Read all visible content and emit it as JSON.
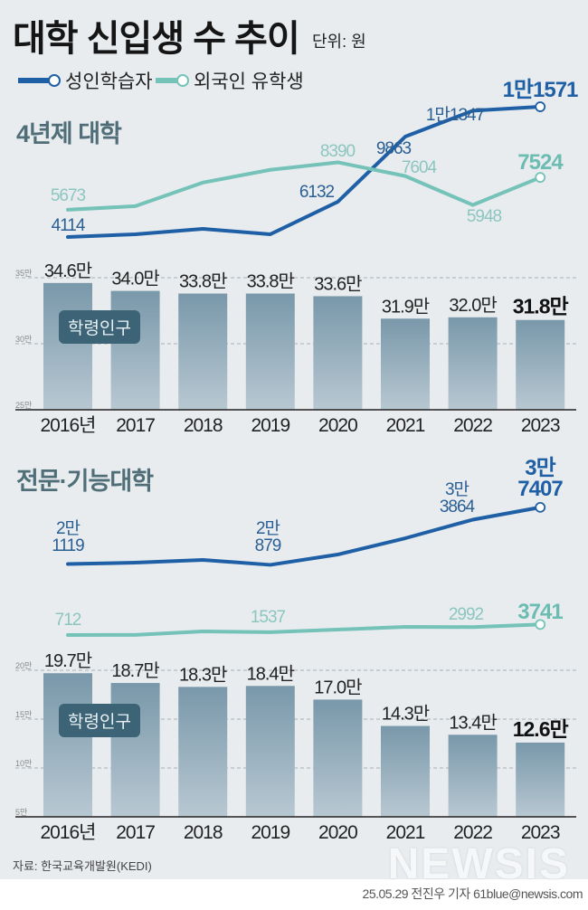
{
  "header": {
    "title": "대학 신입생 수 추이",
    "unit": "단위: 원"
  },
  "legend": [
    {
      "name": "성인학습자",
      "color": "#1f5fa5"
    },
    {
      "name": "외국인 유학생",
      "color": "#74c2b8"
    }
  ],
  "colors": {
    "background": "#e8ecef",
    "bar": "#7f9caf",
    "label_box": "#3d6476"
  },
  "footer": {
    "source": "자료: 한국교육개발원(KEDI)",
    "credit": "25.05.29 전진우 기자 61blue@newsis.com",
    "logo": "뉴시스"
  },
  "chart_data": [
    {
      "type": "line",
      "title": "4년제 대학",
      "x": [
        "2016",
        "2017",
        "2018",
        "2019",
        "2020",
        "2021",
        "2022",
        "2023"
      ],
      "series": [
        {
          "name": "성인학습자",
          "values": [
            4114,
            4270,
            4580,
            4270,
            6132,
            9863,
            11347,
            11571
          ],
          "labels": [
            "4114",
            "",
            "",
            "",
            "6132",
            "9863",
            "1만1347",
            "1만1571"
          ]
        },
        {
          "name": "외국인 유학생",
          "values": [
            5673,
            5880,
            7230,
            7960,
            8390,
            7604,
            5948,
            7524
          ],
          "labels": [
            "5673",
            "",
            "",
            "",
            "8390",
            "7604",
            "5948",
            "7524"
          ]
        }
      ]
    },
    {
      "type": "bar",
      "label": "학령인구",
      "categories": [
        "2016년",
        "2017",
        "2018",
        "2019",
        "2020",
        "2021",
        "2022",
        "2023"
      ],
      "values": [
        34.6,
        34.0,
        33.8,
        33.8,
        33.6,
        31.9,
        32.0,
        31.8
      ],
      "value_labels": [
        "34.6만",
        "34.0만",
        "33.8만",
        "33.8만",
        "33.6만",
        "31.9만",
        "32.0만",
        "31.8만"
      ],
      "unit": "만",
      "yticks": [
        "35만",
        "30만",
        "25만"
      ],
      "ylim": [
        25,
        35
      ],
      "grid": true
    },
    {
      "type": "line",
      "title": "전문·기능대학",
      "x": [
        "2016",
        "2017",
        "2018",
        "2019",
        "2020",
        "2021",
        "2022",
        "2023"
      ],
      "series": [
        {
          "name": "성인학습자",
          "values": [
            21119,
            21510,
            22290,
            20879,
            23850,
            28530,
            33864,
            37407
          ],
          "labels": [
            [
              "2만",
              "1119"
            ],
            "",
            "",
            [
              "2만",
              "879"
            ],
            "",
            "",
            [
              "3만",
              "3864"
            ],
            [
              "3만",
              "7407"
            ]
          ]
        },
        {
          "name": "외국인 유학생",
          "values": [
            712,
            760,
            1750,
            1537,
            2270,
            3050,
            2992,
            3741
          ],
          "labels": [
            "712",
            "",
            "",
            "1537",
            "",
            "",
            "2992",
            "3741"
          ]
        }
      ]
    },
    {
      "type": "bar",
      "label": "학령인구",
      "categories": [
        "2016년",
        "2017",
        "2018",
        "2019",
        "2020",
        "2021",
        "2022",
        "2023"
      ],
      "values": [
        19.7,
        18.7,
        18.3,
        18.4,
        17.0,
        14.3,
        13.4,
        12.6
      ],
      "value_labels": [
        "19.7만",
        "18.7만",
        "18.3만",
        "18.4만",
        "17.0만",
        "14.3만",
        "13.4만",
        "12.6만"
      ],
      "unit": "만",
      "yticks": [
        "20만",
        "15만",
        "10만",
        "5만"
      ],
      "ylim": [
        5,
        20
      ],
      "grid": true
    }
  ]
}
